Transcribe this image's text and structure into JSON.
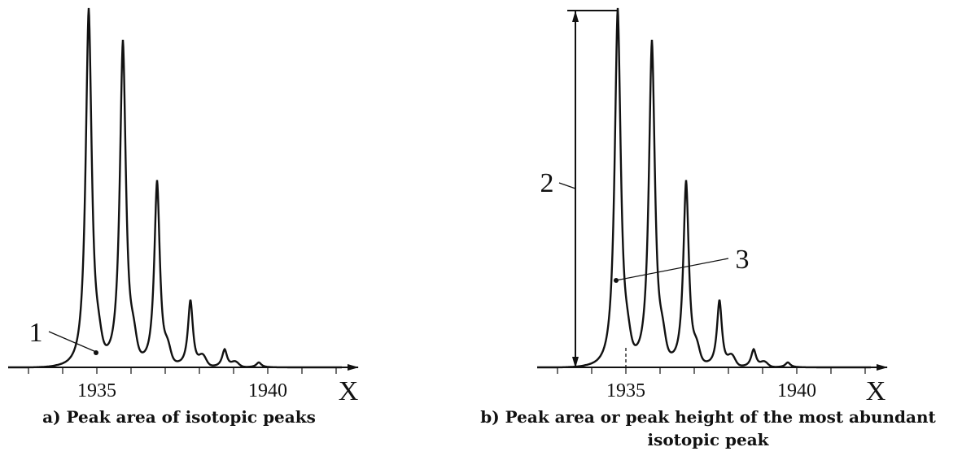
{
  "panel_a": {
    "callout": "1",
    "x_tick_labels": [
      "1935",
      "1940"
    ],
    "x_axis_label": "X",
    "caption": "a) Peak area of isotopic peaks"
  },
  "panel_b": {
    "callouts": [
      "2",
      "3"
    ],
    "x_tick_labels": [
      "1935",
      "1940"
    ],
    "x_axis_label": "X",
    "caption_lines": [
      "b) Peak area or peak height of the most abundant",
      "isotopic peak"
    ]
  }
}
